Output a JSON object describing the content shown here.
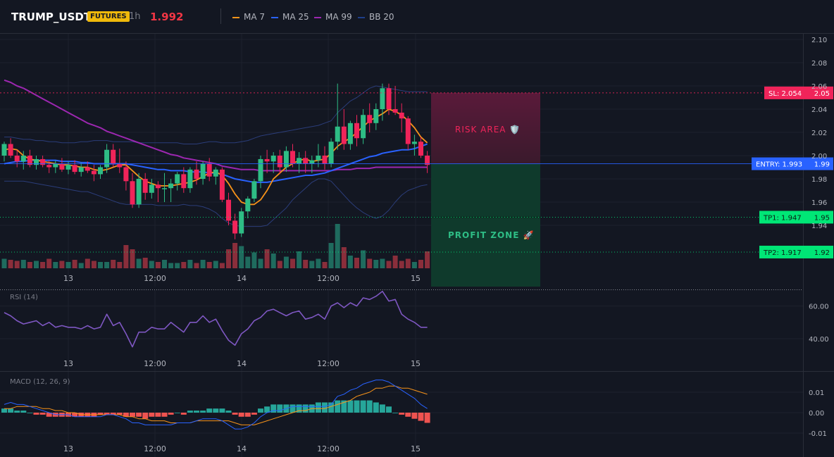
{
  "header": {
    "symbol": "TRUMP_USDT",
    "badge": "FUTURES",
    "timeframe": "1h",
    "price": "1.992",
    "legend": [
      {
        "name": "MA 7",
        "color": "#f7931a"
      },
      {
        "name": "MA 25",
        "color": "#2962ff"
      },
      {
        "name": "MA 99",
        "color": "#9c27b0"
      },
      {
        "name": "BB 20",
        "color": "#1e3f8a"
      }
    ]
  },
  "colors": {
    "up": "#26a69a",
    "down": "#ef5350",
    "bull_candle": "#2ebd85",
    "bear_candle": "#f0245a"
  },
  "chart_data": [
    {
      "type": "candlestick",
      "x_tick_labels": [
        "13",
        "12:00",
        "14",
        "12:00",
        "15"
      ],
      "y_tick_labels": [
        "2.10",
        "2.08",
        "2.06",
        "2.04",
        "2.02",
        "2.00",
        "1.98",
        "1.96",
        "1.94"
      ],
      "ylim": [
        1.92,
        2.1
      ],
      "candles": [
        [
          2.0,
          2.012,
          1.995,
          2.01
        ],
        [
          2.01,
          2.015,
          1.998,
          2.0
        ],
        [
          2.0,
          2.005,
          1.99,
          1.995
        ],
        [
          1.995,
          2.004,
          1.988,
          2.0
        ],
        [
          2.0,
          2.005,
          1.99,
          1.992
        ],
        [
          1.992,
          2.0,
          1.988,
          1.997
        ],
        [
          1.997,
          2.0,
          1.99,
          1.992
        ],
        [
          1.992,
          1.996,
          1.985,
          1.99
        ],
        [
          1.99,
          1.996,
          1.985,
          1.993
        ],
        [
          1.993,
          1.998,
          1.986,
          1.988
        ],
        [
          1.988,
          1.995,
          1.984,
          1.992
        ],
        [
          1.992,
          1.996,
          1.984,
          1.986
        ],
        [
          1.986,
          1.994,
          1.982,
          1.99
        ],
        [
          1.99,
          1.995,
          1.985,
          1.987
        ],
        [
          1.987,
          1.992,
          1.978,
          1.984
        ],
        [
          1.984,
          1.992,
          1.98,
          1.99
        ],
        [
          1.99,
          2.01,
          1.985,
          2.005
        ],
        [
          2.005,
          2.01,
          1.99,
          1.993
        ],
        [
          1.993,
          2.006,
          1.985,
          1.99
        ],
        [
          1.99,
          1.995,
          1.97,
          1.978
        ],
        [
          1.978,
          1.985,
          1.955,
          1.958
        ],
        [
          1.958,
          1.985,
          1.955,
          1.98
        ],
        [
          1.98,
          1.985,
          1.962,
          1.968
        ],
        [
          1.968,
          1.98,
          1.963,
          1.975
        ],
        [
          1.975,
          1.978,
          1.96,
          1.972
        ],
        [
          1.972,
          1.985,
          1.96,
          1.972
        ],
        [
          1.972,
          1.98,
          1.96,
          1.976
        ],
        [
          1.976,
          1.986,
          1.97,
          1.984
        ],
        [
          1.984,
          1.99,
          1.968,
          1.972
        ],
        [
          1.972,
          1.99,
          1.968,
          1.988
        ],
        [
          1.988,
          1.995,
          1.975,
          1.98
        ],
        [
          1.98,
          1.995,
          1.975,
          1.993
        ],
        [
          1.993,
          1.998,
          1.978,
          1.982
        ],
        [
          1.982,
          1.99,
          1.975,
          1.988
        ],
        [
          1.988,
          1.99,
          1.96,
          1.962
        ],
        [
          1.962,
          1.968,
          1.94,
          1.944
        ],
        [
          1.944,
          1.95,
          1.928,
          1.933
        ],
        [
          1.933,
          1.955,
          1.93,
          1.952
        ],
        [
          1.952,
          1.965,
          1.946,
          1.963
        ],
        [
          1.963,
          1.98,
          1.96,
          1.978
        ],
        [
          1.978,
          2.0,
          1.972,
          1.997
        ],
        [
          1.997,
          2.005,
          1.985,
          1.995
        ],
        [
          1.995,
          2.003,
          1.985,
          2.0
        ],
        [
          2.0,
          2.005,
          1.984,
          1.99
        ],
        [
          1.99,
          2.008,
          1.986,
          2.004
        ],
        [
          2.004,
          2.01,
          1.99,
          1.993
        ],
        [
          1.993,
          2.003,
          1.985,
          1.998
        ],
        [
          1.998,
          2.004,
          1.985,
          1.993
        ],
        [
          1.993,
          2.0,
          1.985,
          1.996
        ],
        [
          1.996,
          2.01,
          1.99,
          2.0
        ],
        [
          2.0,
          2.008,
          1.988,
          1.993
        ],
        [
          1.993,
          2.015,
          1.99,
          2.012
        ],
        [
          2.012,
          2.062,
          2.005,
          2.025
        ],
        [
          2.025,
          2.04,
          2.005,
          2.01
        ],
        [
          2.01,
          2.03,
          2.005,
          2.028
        ],
        [
          2.028,
          2.035,
          2.008,
          2.015
        ],
        [
          2.015,
          2.04,
          2.01,
          2.035
        ],
        [
          2.035,
          2.045,
          2.02,
          2.028
        ],
        [
          2.028,
          2.045,
          2.022,
          2.04
        ],
        [
          2.04,
          2.062,
          2.03,
          2.058
        ],
        [
          2.058,
          2.062,
          2.035,
          2.04
        ],
        [
          2.04,
          2.06,
          2.035,
          2.037
        ],
        [
          2.037,
          2.045,
          2.02,
          2.032
        ],
        [
          2.032,
          2.034,
          2.005,
          2.01
        ],
        [
          2.01,
          2.018,
          2.0,
          2.012
        ],
        [
          2.012,
          2.016,
          1.998,
          2.0
        ],
        [
          2.0,
          2.004,
          1.985,
          1.992
        ]
      ],
      "ma7": [
        2.005,
        2.006,
        2.005,
        2.0,
        1.997,
        1.996,
        1.995,
        1.994,
        1.993,
        1.992,
        1.992,
        1.991,
        1.99,
        1.99,
        1.988,
        1.987,
        1.988,
        1.99,
        1.992,
        1.992,
        1.987,
        1.982,
        1.978,
        1.976,
        1.974,
        1.974,
        1.974,
        1.975,
        1.976,
        1.977,
        1.979,
        1.982,
        1.985,
        1.986,
        1.983,
        1.976,
        1.967,
        1.96,
        1.958,
        1.958,
        1.962,
        1.97,
        1.98,
        1.985,
        1.99,
        1.993,
        1.996,
        1.997,
        1.995,
        1.996,
        1.997,
        2.002,
        2.008,
        2.012,
        2.015,
        2.02,
        2.025,
        2.03,
        2.033,
        2.036,
        2.04,
        2.038,
        2.035,
        2.03,
        2.024,
        2.016,
        2.011
      ],
      "ma25": [
        1.993,
        1.994,
        1.995,
        1.995,
        1.996,
        1.996,
        1.996,
        1.996,
        1.996,
        1.995,
        1.995,
        1.995,
        1.994,
        1.994,
        1.993,
        1.993,
        1.993,
        1.993,
        1.993,
        1.993,
        1.992,
        1.991,
        1.99,
        1.989,
        1.988,
        1.988,
        1.987,
        1.987,
        1.987,
        1.986,
        1.986,
        1.986,
        1.985,
        1.985,
        1.984,
        1.982,
        1.98,
        1.979,
        1.978,
        1.977,
        1.977,
        1.977,
        1.978,
        1.979,
        1.98,
        1.981,
        1.982,
        1.983,
        1.983,
        1.984,
        1.985,
        1.987,
        1.989,
        1.991,
        1.993,
        1.995,
        1.997,
        1.999,
        2.0,
        2.002,
        2.003,
        2.004,
        2.005,
        2.005,
        2.006,
        2.008,
        2.01
      ],
      "ma99": [
        2.065,
        2.063,
        2.06,
        2.058,
        2.055,
        2.052,
        2.049,
        2.046,
        2.043,
        2.04,
        2.037,
        2.034,
        2.031,
        2.028,
        2.026,
        2.024,
        2.021,
        2.019,
        2.017,
        2.015,
        2.013,
        2.011,
        2.009,
        2.007,
        2.005,
        2.003,
        2.001,
        2.0,
        1.998,
        1.997,
        1.996,
        1.995,
        1.994,
        1.993,
        1.991,
        1.99,
        1.989,
        1.988,
        1.988,
        1.988,
        1.987,
        1.987,
        1.987,
        1.987,
        1.987,
        1.987,
        1.987,
        1.987,
        1.987,
        1.987,
        1.987,
        1.987,
        1.988,
        1.988,
        1.988,
        1.989,
        1.989,
        1.989,
        1.99,
        1.99,
        1.99,
        1.99,
        1.99,
        1.99,
        1.99,
        1.99,
        1.99
      ],
      "bb_upper": [
        2.016,
        2.016,
        2.015,
        2.014,
        2.014,
        2.013,
        2.013,
        2.012,
        2.012,
        2.011,
        2.011,
        2.011,
        2.012,
        2.012,
        2.013,
        2.013,
        2.013,
        2.012,
        2.012,
        2.012,
        2.012,
        2.011,
        2.011,
        2.011,
        2.011,
        2.011,
        2.011,
        2.011,
        2.01,
        2.01,
        2.01,
        2.011,
        2.012,
        2.012,
        2.011,
        2.011,
        2.011,
        2.012,
        2.013,
        2.015,
        2.017,
        2.018,
        2.019,
        2.02,
        2.021,
        2.022,
        2.023,
        2.024,
        2.025,
        2.026,
        2.028,
        2.03,
        2.037,
        2.042,
        2.047,
        2.05,
        2.054,
        2.058,
        2.06,
        2.059,
        2.058,
        2.057,
        2.056,
        2.055,
        2.055,
        2.055,
        2.055
      ],
      "bb_lower": [
        1.978,
        1.978,
        1.978,
        1.978,
        1.977,
        1.976,
        1.975,
        1.974,
        1.973,
        1.972,
        1.971,
        1.97,
        1.969,
        1.969,
        1.967,
        1.965,
        1.963,
        1.961,
        1.959,
        1.958,
        1.958,
        1.958,
        1.958,
        1.958,
        1.957,
        1.957,
        1.957,
        1.957,
        1.958,
        1.957,
        1.957,
        1.956,
        1.954,
        1.951,
        1.946,
        1.942,
        1.94,
        1.939,
        1.939,
        1.939,
        1.939,
        1.94,
        1.945,
        1.95,
        1.955,
        1.962,
        1.967,
        1.972,
        1.977,
        1.98,
        1.98,
        1.978,
        1.972,
        1.966,
        1.96,
        1.955,
        1.951,
        1.948,
        1.946,
        1.948,
        1.953,
        1.96,
        1.966,
        1.97,
        1.972,
        1.974,
        1.975
      ],
      "volume": [
        9,
        8,
        7,
        8,
        6,
        7,
        6,
        9,
        6,
        7,
        6,
        8,
        5,
        9,
        7,
        6,
        6,
        8,
        6,
        22,
        18,
        9,
        10,
        7,
        6,
        8,
        5,
        5,
        6,
        8,
        5,
        8,
        6,
        7,
        5,
        18,
        24,
        21,
        11,
        15,
        9,
        18,
        14,
        7,
        11,
        9,
        16,
        8,
        7,
        9,
        6,
        24,
        42,
        20,
        12,
        10,
        17,
        9,
        8,
        9,
        7,
        12,
        7,
        9,
        6,
        8,
        16
      ],
      "levels": [
        {
          "label": "SL: 2.054",
          "axis_label": "2.05",
          "value": 2.054,
          "color": "#f0245a"
        },
        {
          "label": "ENTRY: 1.993",
          "axis_label": "1.99",
          "value": 1.993,
          "color": "#2962ff"
        },
        {
          "label": "TP1: 1.947",
          "axis_label": "1.95",
          "value": 1.947,
          "color": "#00e676"
        },
        {
          "label": "TP2: 1.917",
          "axis_label": "1.92",
          "value": 1.917,
          "color": "#00e676"
        }
      ],
      "zones": {
        "risk": "RISK AREA 🛡️",
        "profit": "PROFIT ZONE 🚀"
      }
    },
    {
      "type": "line",
      "title": "RSI (14)",
      "ylim": [
        30,
        75
      ],
      "y_tick_labels": [
        "60.00",
        "40.00"
      ],
      "x_tick_labels": [
        "13",
        "12:00",
        "14",
        "12:00",
        "15"
      ],
      "values": [
        56,
        54,
        51,
        49,
        50,
        51,
        48,
        50,
        47,
        48,
        47,
        47,
        46,
        48,
        46,
        47,
        55,
        48,
        50,
        43,
        35,
        44,
        44,
        47,
        46,
        46,
        50,
        47,
        44,
        50,
        50,
        54,
        50,
        52,
        45,
        39,
        36,
        43,
        46,
        51,
        53,
        57,
        58,
        56,
        54,
        56,
        57,
        52,
        53,
        55,
        52,
        60,
        62,
        59,
        62,
        60,
        65,
        64,
        66,
        69,
        63,
        64,
        55,
        52,
        50,
        47,
        47
      ]
    },
    {
      "type": "bar",
      "title": "MACD (12, 26, 9)",
      "ylim": [
        -0.015,
        0.02
      ],
      "y_tick_labels": [
        "0.01",
        "0.00",
        "-0.01"
      ],
      "x_tick_labels": [
        "13",
        "12:00",
        "14",
        "12:00",
        "15"
      ],
      "macd": [
        0.004,
        0.005,
        0.004,
        0.004,
        0.003,
        0.002,
        0.001,
        0.0,
        -0.001,
        -0.001,
        -0.001,
        -0.002,
        -0.002,
        -0.002,
        -0.002,
        -0.002,
        -0.001,
        -0.001,
        -0.002,
        -0.003,
        -0.005,
        -0.005,
        -0.006,
        -0.006,
        -0.006,
        -0.006,
        -0.006,
        -0.005,
        -0.005,
        -0.005,
        -0.004,
        -0.003,
        -0.003,
        -0.003,
        -0.004,
        -0.006,
        -0.008,
        -0.008,
        -0.007,
        -0.005,
        -0.002,
        0.0,
        0.001,
        0.001,
        0.002,
        0.003,
        0.003,
        0.003,
        0.003,
        0.003,
        0.003,
        0.004,
        0.008,
        0.009,
        0.011,
        0.012,
        0.014,
        0.015,
        0.016,
        0.016,
        0.015,
        0.013,
        0.011,
        0.009,
        0.007,
        0.004,
        0.002
      ],
      "signal": [
        0.002,
        0.002,
        0.003,
        0.003,
        0.003,
        0.003,
        0.002,
        0.002,
        0.001,
        0.001,
        0.0,
        0.0,
        -0.001,
        -0.001,
        -0.001,
        -0.001,
        -0.001,
        -0.001,
        -0.001,
        -0.002,
        -0.002,
        -0.003,
        -0.003,
        -0.004,
        -0.004,
        -0.004,
        -0.005,
        -0.005,
        -0.005,
        -0.005,
        -0.004,
        -0.004,
        -0.004,
        -0.004,
        -0.004,
        -0.004,
        -0.005,
        -0.006,
        -0.006,
        -0.006,
        -0.005,
        -0.004,
        -0.003,
        -0.002,
        -0.001,
        0.0,
        0.001,
        0.001,
        0.002,
        0.002,
        0.002,
        0.003,
        0.004,
        0.005,
        0.006,
        0.008,
        0.009,
        0.01,
        0.012,
        0.012,
        0.013,
        0.013,
        0.012,
        0.012,
        0.011,
        0.01,
        0.009
      ],
      "histogram": [
        0.002,
        0.002,
        0.001,
        0.001,
        0.0,
        -0.001,
        -0.001,
        -0.002,
        -0.002,
        -0.002,
        -0.002,
        -0.002,
        -0.002,
        -0.002,
        -0.002,
        -0.001,
        -0.001,
        -0.001,
        -0.001,
        -0.002,
        -0.002,
        -0.002,
        -0.003,
        -0.002,
        -0.002,
        -0.002,
        -0.001,
        0.0,
        -0.001,
        0.001,
        0.001,
        0.001,
        0.002,
        0.002,
        0.002,
        0.001,
        -0.001,
        -0.002,
        -0.002,
        -0.001,
        0.002,
        0.003,
        0.004,
        0.004,
        0.004,
        0.004,
        0.004,
        0.004,
        0.004,
        0.005,
        0.005,
        0.005,
        0.006,
        0.006,
        0.006,
        0.006,
        0.006,
        0.006,
        0.005,
        0.004,
        0.003,
        0.0,
        -0.001,
        -0.002,
        -0.003,
        -0.004,
        -0.005
      ]
    }
  ]
}
